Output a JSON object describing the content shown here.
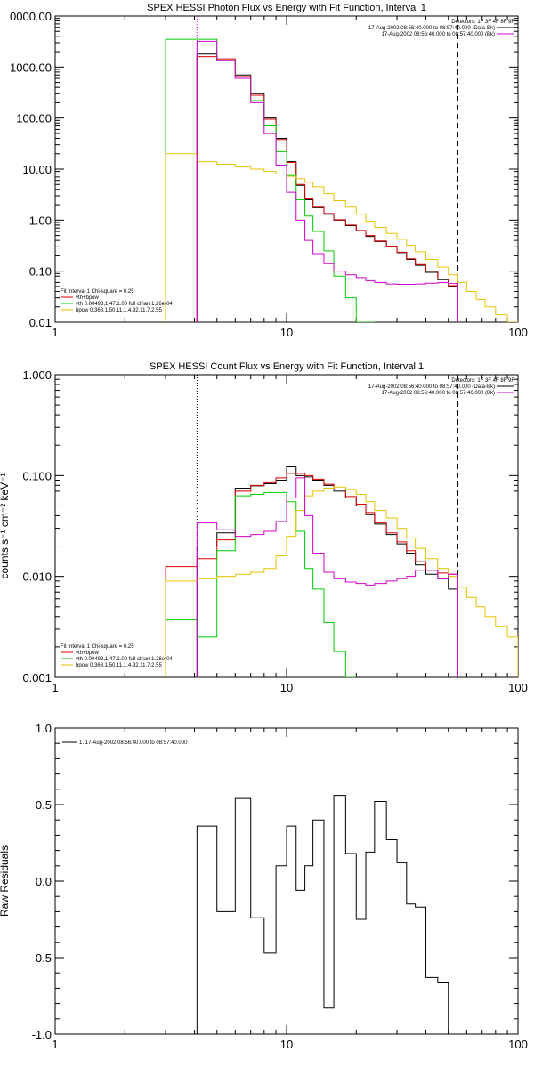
{
  "colors": {
    "total": "#000000",
    "sum": "#dd0000",
    "vth": "#00cc00",
    "bpow": "#e6c200",
    "bk": "#cc00cc",
    "background": "#ffffff"
  },
  "chart_data": [
    {
      "type": "line",
      "title": "SPEX HESSI Photon Flux vs Energy with Fit Function, Interval 1",
      "xscale": "log",
      "yscale": "log",
      "xlim": [
        1,
        100
      ],
      "ylim": [
        0.01,
        10000
      ],
      "xticks": [
        "1",
        "10",
        "100"
      ],
      "yticks": [
        "0.01",
        "0.10",
        "1.00",
        "10.00",
        "100.00",
        "1000.00",
        "0000.00"
      ],
      "xlabel": "",
      "ylabel": "",
      "vlines": [
        {
          "x": 4.1,
          "style": "dotted",
          "color": "bk"
        },
        {
          "x": 55,
          "style": "dashed",
          "color": "total"
        }
      ],
      "detectors": "Detectors: 1F 3F 4F 8F 9F",
      "legend_right": [
        {
          "label": "17-Aug-2002 08:56:40.000 to 08:57:40.000 (Data-Bk)",
          "color": "total"
        },
        {
          "label": "17-Aug-2002 08:56:40.000 to 08:57:40.000 (Bk)",
          "color": "bk"
        }
      ],
      "legend_left": {
        "header": "Fit Interval 1    Chi-square = 0.25",
        "entries": [
          {
            "label": "vth+bpow",
            "color": "sum"
          },
          {
            "label": "vth 0.00493,1.47,1.00  full chian 1.26e-04",
            "color": "vth"
          },
          {
            "label": "bpow 0.368,1.50,11.1,4.92,11.7,2.55",
            "color": "bpow"
          }
        ]
      },
      "edges": [
        3.0,
        4.1,
        5.0,
        6.0,
        7.0,
        8.0,
        9.0,
        10.0,
        11.0,
        12.0,
        13.0,
        14.5,
        16.0,
        18.0,
        20.0,
        22.0,
        24.0,
        27.0,
        30.0,
        33.0,
        36.0,
        40.0,
        45.0,
        50.0,
        55.0,
        60.0,
        66.0,
        72.0,
        80.0,
        90.0,
        100.0
      ],
      "series": [
        {
          "color": "total",
          "values": [
            null,
            1800,
            1350,
            700,
            300,
            100,
            40,
            14,
            4.8,
            2.5,
            1.75,
            1.3,
            1.0,
            0.78,
            0.62,
            0.48,
            0.38,
            0.3,
            0.23,
            0.17,
            0.13,
            0.095,
            0.068,
            0.05,
            null,
            null,
            null,
            null,
            null,
            null
          ]
        },
        {
          "color": "sum",
          "values": [
            null,
            1600,
            1450,
            650,
            280,
            95,
            38,
            13.5,
            5.0,
            2.6,
            1.8,
            1.35,
            1.02,
            0.8,
            0.63,
            0.5,
            0.39,
            0.31,
            0.235,
            0.175,
            0.135,
            0.1,
            0.07,
            0.052,
            null,
            null,
            null,
            null,
            null,
            null
          ]
        },
        {
          "color": "vth",
          "values": [
            3500,
            3500,
            1350,
            600,
            220,
            70,
            22,
            7.5,
            2.5,
            1.2,
            0.6,
            0.25,
            0.08,
            0.03,
            0.01,
            0.005,
            null,
            null,
            null,
            null,
            null,
            null,
            null,
            null,
            null,
            null,
            null,
            null,
            null,
            null
          ]
        },
        {
          "color": "bpow",
          "values": [
            20,
            14,
            12.5,
            11,
            10,
            9,
            8,
            7.2,
            6.5,
            5.5,
            4.5,
            3.3,
            2.4,
            1.8,
            1.3,
            0.95,
            0.72,
            0.55,
            0.42,
            0.32,
            0.24,
            0.17,
            0.12,
            0.085,
            0.06,
            0.04,
            0.028,
            0.02,
            0.014,
            0.01
          ]
        },
        {
          "color": "bk",
          "values": [
            null,
            3200,
            1350,
            600,
            200,
            50,
            12,
            3.5,
            1.0,
            0.4,
            0.22,
            0.14,
            0.1,
            0.085,
            0.075,
            0.065,
            0.06,
            0.056,
            0.055,
            0.055,
            0.056,
            0.058,
            0.06,
            0.057,
            null,
            null,
            null,
            null,
            null,
            null
          ]
        }
      ]
    },
    {
      "type": "line",
      "title": "SPEX HESSI Count Flux vs Energy with Fit Function, Interval 1",
      "xscale": "log",
      "yscale": "log",
      "xlim": [
        1,
        100
      ],
      "ylim": [
        0.001,
        1.0
      ],
      "xticks": [
        "1",
        "10",
        "100"
      ],
      "yticks": [
        "0.001",
        "0.010",
        "0.100",
        "1.000"
      ],
      "xlabel": "",
      "ylabel": "counts s⁻¹ cm⁻² keV⁻¹",
      "vlines": [
        {
          "x": 4.1,
          "style": "dotted",
          "color": "total"
        },
        {
          "x": 55,
          "style": "dashed",
          "color": "total"
        }
      ],
      "detectors": "Detectors: 1F 3F 4F 8F 9F",
      "legend_right": [
        {
          "label": "17-Aug-2002 08:56:40.000 to 08:57:40.000 (Data-Bk)",
          "color": "total"
        },
        {
          "label": "17-Aug-2002 08:56:40.000 to 08:57:40.000 (Bk)",
          "color": "bk"
        }
      ],
      "legend_left": {
        "header": "Fit Interval 1    Chi-square = 0.25",
        "entries": [
          {
            "label": "vth+bpow",
            "color": "sum"
          },
          {
            "label": "vth 0.00493,1.47,1.00  full chian 1.26e-04",
            "color": "vth"
          },
          {
            "label": "bpow 0.368,1.50,11.1,4.92,11.7,2.55",
            "color": "bpow"
          }
        ]
      },
      "edges": [
        3.0,
        4.1,
        5.0,
        6.0,
        7.0,
        8.0,
        9.0,
        10.0,
        11.0,
        12.0,
        13.0,
        14.5,
        16.0,
        18.0,
        20.0,
        22.0,
        24.0,
        27.0,
        30.0,
        33.0,
        36.0,
        40.0,
        45.0,
        50.0,
        55.0,
        60.0,
        66.0,
        72.0,
        80.0,
        90.0,
        100.0
      ],
      "series": [
        {
          "color": "total",
          "values": [
            null,
            0.02,
            0.027,
            0.075,
            0.079,
            0.083,
            0.09,
            0.122,
            0.1,
            0.097,
            0.09,
            0.08,
            0.07,
            0.06,
            0.05,
            0.041,
            0.033,
            0.026,
            0.021,
            0.017,
            0.013,
            0.0105,
            0.0095,
            0.0075,
            null,
            null,
            null,
            null,
            null,
            null
          ]
        },
        {
          "color": "sum",
          "values": [
            0.0125,
            0.015,
            0.023,
            0.07,
            0.08,
            0.085,
            0.095,
            0.105,
            0.105,
            0.1,
            0.092,
            0.082,
            0.072,
            0.062,
            0.052,
            0.043,
            0.034,
            0.027,
            0.022,
            0.018,
            0.014,
            0.0115,
            0.0108,
            0.0105,
            null,
            null,
            null,
            null,
            null,
            null
          ]
        },
        {
          "color": "vth",
          "values": [
            0.0037,
            0.0025,
            0.018,
            0.063,
            0.065,
            0.068,
            0.068,
            0.055,
            0.028,
            0.012,
            0.0075,
            0.0035,
            0.0018,
            0.0005,
            null,
            null,
            null,
            null,
            null,
            null,
            null,
            null,
            null,
            null,
            null,
            null,
            null,
            null,
            null,
            null
          ]
        },
        {
          "color": "bpow",
          "values": [
            0.009,
            0.0095,
            0.01,
            0.0105,
            0.011,
            0.012,
            0.016,
            0.025,
            0.045,
            0.063,
            0.07,
            0.075,
            0.077,
            0.073,
            0.065,
            0.055,
            0.045,
            0.038,
            0.03,
            0.024,
            0.019,
            0.015,
            0.012,
            0.01,
            0.0078,
            0.0062,
            0.005,
            0.004,
            0.0032,
            0.0025
          ]
        },
        {
          "color": "bk",
          "values": [
            null,
            0.034,
            0.029,
            0.025,
            0.026,
            0.028,
            0.035,
            0.06,
            0.095,
            0.04,
            0.017,
            0.011,
            0.0095,
            0.0088,
            0.0085,
            0.0082,
            0.0085,
            0.009,
            0.0095,
            0.01,
            0.0115,
            0.0115,
            0.0095,
            0.0105,
            null,
            null,
            null,
            null,
            null,
            null
          ]
        }
      ]
    },
    {
      "type": "line",
      "title": "",
      "xscale": "log",
      "yscale": "linear",
      "xlim": [
        1,
        100
      ],
      "ylim": [
        -1.0,
        1.0
      ],
      "xticks": [
        "1",
        "10",
        "100"
      ],
      "yticks": [
        "-1.0",
        "-0.5",
        "0.0",
        "0.5",
        "1.0"
      ],
      "xlabel": "",
      "ylabel": "Raw Residuals",
      "legend": "1. 17-Aug-2002 08:56:40.000 to 08:57:40.000",
      "edges": [
        4.1,
        5.0,
        6.0,
        7.0,
        8.0,
        9.0,
        10.0,
        11.0,
        12.0,
        13.0,
        14.5,
        16.0,
        18.0,
        20.0,
        22.0,
        24.0,
        27.0,
        30.0,
        33.0,
        36.0,
        40.0,
        45.0,
        50.0,
        55.0
      ],
      "values": [
        0.36,
        -0.2,
        0.54,
        -0.24,
        -0.47,
        0.1,
        0.36,
        -0.06,
        0.1,
        0.4,
        -0.83,
        0.56,
        0.18,
        -0.25,
        0.19,
        0.52,
        0.27,
        0.12,
        -0.15,
        -0.17,
        -0.63,
        -0.66,
        null
      ]
    }
  ]
}
